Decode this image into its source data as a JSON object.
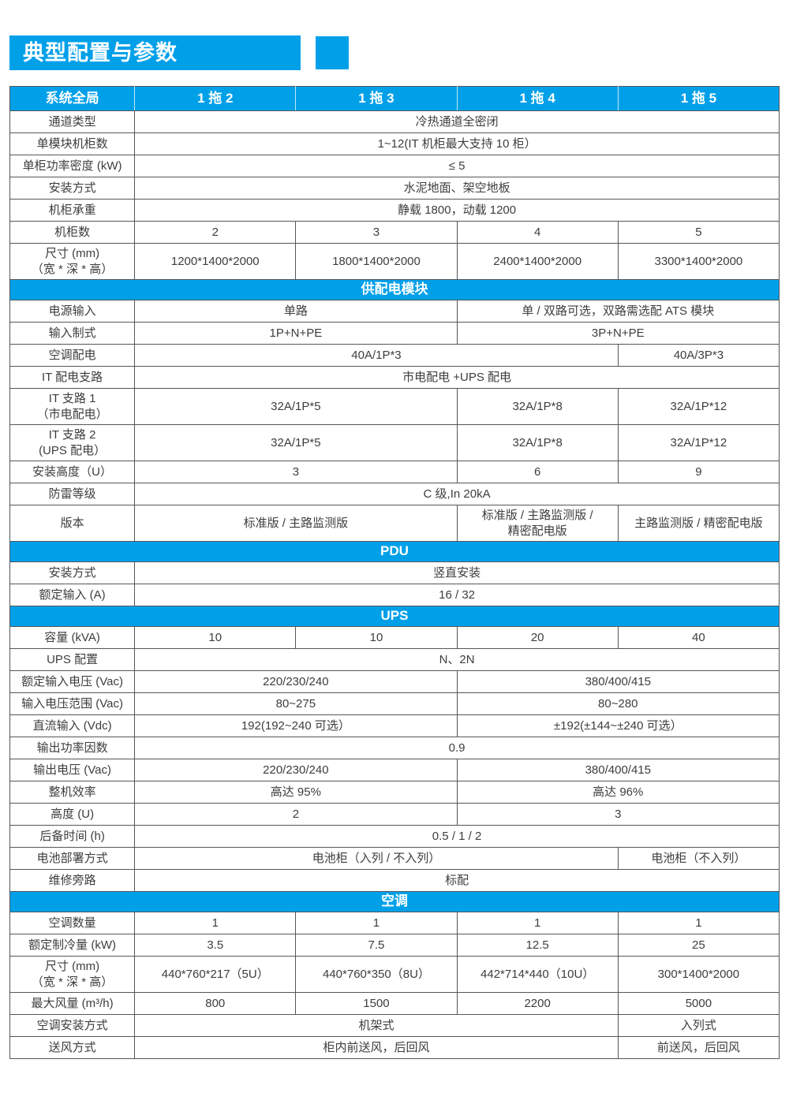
{
  "page_title": "典型配置与参数",
  "accent_color": "#00A0E9",
  "table": {
    "header": [
      "系统全局",
      "1 拖 2",
      "1 拖 3",
      "1 拖 4",
      "1 拖 5"
    ],
    "sections": [
      {
        "title": null,
        "rows": [
          {
            "label": "通道类型",
            "cells": [
              {
                "t": "冷热通道全密闭",
                "s": 4
              }
            ]
          },
          {
            "label": "单模块机柜数",
            "cells": [
              {
                "t": "1~12(IT 机柜最大支持 10 柜）",
                "s": 4
              }
            ]
          },
          {
            "label": "单柜功率密度 (kW)",
            "cells": [
              {
                "t": "≤ 5",
                "s": 4
              }
            ]
          },
          {
            "label": "安装方式",
            "cells": [
              {
                "t": "水泥地面、架空地板",
                "s": 4
              }
            ]
          },
          {
            "label": "机柜承重",
            "cells": [
              {
                "t": "静载 1800，动载 1200",
                "s": 4
              }
            ]
          },
          {
            "label": "机柜数",
            "cells": [
              {
                "t": "2",
                "s": 1
              },
              {
                "t": "3",
                "s": 1
              },
              {
                "t": "4",
                "s": 1
              },
              {
                "t": "5",
                "s": 1
              }
            ]
          },
          {
            "label": "尺寸 (mm)\n（宽 * 深 * 高）",
            "cells": [
              {
                "t": "1200*1400*2000",
                "s": 1
              },
              {
                "t": "1800*1400*2000",
                "s": 1
              },
              {
                "t": "2400*1400*2000",
                "s": 1
              },
              {
                "t": "3300*1400*2000",
                "s": 1
              }
            ]
          }
        ]
      },
      {
        "title": "供配电模块",
        "rows": [
          {
            "label": "电源输入",
            "cells": [
              {
                "t": "单路",
                "s": 2
              },
              {
                "t": "单 / 双路可选，双路需选配 ATS 模块",
                "s": 2
              }
            ]
          },
          {
            "label": "输入制式",
            "cells": [
              {
                "t": "1P+N+PE",
                "s": 2
              },
              {
                "t": "3P+N+PE",
                "s": 2
              }
            ]
          },
          {
            "label": "空调配电",
            "cells": [
              {
                "t": "40A/1P*3",
                "s": 3
              },
              {
                "t": "40A/3P*3",
                "s": 1
              }
            ]
          },
          {
            "label": "IT 配电支路",
            "cells": [
              {
                "t": "市电配电 +UPS 配电",
                "s": 4
              }
            ]
          },
          {
            "label": "IT 支路 1\n（市电配电）",
            "cells": [
              {
                "t": "32A/1P*5",
                "s": 2
              },
              {
                "t": "32A/1P*8",
                "s": 1
              },
              {
                "t": "32A/1P*12",
                "s": 1
              }
            ]
          },
          {
            "label": "IT 支路 2\n(UPS 配电）",
            "cells": [
              {
                "t": "32A/1P*5",
                "s": 2
              },
              {
                "t": "32A/1P*8",
                "s": 1
              },
              {
                "t": "32A/1P*12",
                "s": 1
              }
            ]
          },
          {
            "label": "安装高度（U）",
            "cells": [
              {
                "t": "3",
                "s": 2
              },
              {
                "t": "6",
                "s": 1
              },
              {
                "t": "9",
                "s": 1
              }
            ]
          },
          {
            "label": "防雷等级",
            "cells": [
              {
                "t": "C 级,In 20kA",
                "s": 4
              }
            ]
          },
          {
            "label": "版本",
            "cells": [
              {
                "t": "标准版 / 主路监测版",
                "s": 2
              },
              {
                "t": "标准版 / 主路监测版 /\n精密配电版",
                "s": 1
              },
              {
                "t": "主路监测版 / 精密配电版",
                "s": 1
              }
            ]
          }
        ]
      },
      {
        "title": "PDU",
        "rows": [
          {
            "label": "安装方式",
            "cells": [
              {
                "t": "竖直安装",
                "s": 4
              }
            ]
          },
          {
            "label": "额定输入 (A)",
            "cells": [
              {
                "t": "16 / 32",
                "s": 4
              }
            ]
          }
        ]
      },
      {
        "title": "UPS",
        "rows": [
          {
            "label": "容量 (kVA)",
            "cells": [
              {
                "t": "10",
                "s": 1
              },
              {
                "t": "10",
                "s": 1
              },
              {
                "t": "20",
                "s": 1
              },
              {
                "t": "40",
                "s": 1
              }
            ]
          },
          {
            "label": "UPS 配置",
            "cells": [
              {
                "t": "N、2N",
                "s": 4
              }
            ]
          },
          {
            "label": "额定输入电压 (Vac)",
            "cells": [
              {
                "t": "220/230/240",
                "s": 2
              },
              {
                "t": "380/400/415",
                "s": 2
              }
            ]
          },
          {
            "label": "输入电压范围 (Vac)",
            "cells": [
              {
                "t": "80~275",
                "s": 2
              },
              {
                "t": "80~280",
                "s": 2
              }
            ]
          },
          {
            "label": "直流输入 (Vdc)",
            "cells": [
              {
                "t": "192(192~240 可选）",
                "s": 2
              },
              {
                "t": "±192(±144~±240 可选）",
                "s": 2
              }
            ]
          },
          {
            "label": "输出功率因数",
            "cells": [
              {
                "t": "0.9",
                "s": 4
              }
            ]
          },
          {
            "label": "输出电压 (Vac)",
            "cells": [
              {
                "t": "220/230/240",
                "s": 2
              },
              {
                "t": "380/400/415",
                "s": 2
              }
            ]
          },
          {
            "label": "整机效率",
            "cells": [
              {
                "t": "高达 95%",
                "s": 2
              },
              {
                "t": "高达 96%",
                "s": 2
              }
            ]
          },
          {
            "label": "高度 (U)",
            "cells": [
              {
                "t": "2",
                "s": 2
              },
              {
                "t": "3",
                "s": 2
              }
            ]
          },
          {
            "label": "后备时间 (h)",
            "cells": [
              {
                "t": "0.5 / 1 / 2",
                "s": 4
              }
            ]
          },
          {
            "label": "电池部署方式",
            "cells": [
              {
                "t": "电池柜（入列 / 不入列）",
                "s": 3
              },
              {
                "t": "电池柜（不入列）",
                "s": 1
              }
            ]
          },
          {
            "label": "维修旁路",
            "cells": [
              {
                "t": "标配",
                "s": 4
              }
            ]
          }
        ]
      },
      {
        "title": "空调",
        "rows": [
          {
            "label": "空调数量",
            "cells": [
              {
                "t": "1",
                "s": 1
              },
              {
                "t": "1",
                "s": 1
              },
              {
                "t": "1",
                "s": 1
              },
              {
                "t": "1",
                "s": 1
              }
            ]
          },
          {
            "label": "额定制冷量 (kW)",
            "cells": [
              {
                "t": "3.5",
                "s": 1
              },
              {
                "t": "7.5",
                "s": 1
              },
              {
                "t": "12.5",
                "s": 1
              },
              {
                "t": "25",
                "s": 1
              }
            ]
          },
          {
            "label": "尺寸 (mm)\n（宽 * 深 * 高）",
            "cells": [
              {
                "t": "440*760*217（5U）",
                "s": 1
              },
              {
                "t": "440*760*350（8U）",
                "s": 1
              },
              {
                "t": "442*714*440（10U）",
                "s": 1
              },
              {
                "t": "300*1400*2000",
                "s": 1
              }
            ]
          },
          {
            "label": "最大风量 (m³/h)",
            "cells": [
              {
                "t": "800",
                "s": 1
              },
              {
                "t": "1500",
                "s": 1
              },
              {
                "t": "2200",
                "s": 1
              },
              {
                "t": "5000",
                "s": 1
              }
            ]
          },
          {
            "label": "空调安装方式",
            "cells": [
              {
                "t": "机架式",
                "s": 3
              },
              {
                "t": "入列式",
                "s": 1
              }
            ]
          },
          {
            "label": "送风方式",
            "cells": [
              {
                "t": "柜内前送风，后回风",
                "s": 3
              },
              {
                "t": "前送风，后回风",
                "s": 1
              }
            ]
          }
        ]
      }
    ]
  }
}
